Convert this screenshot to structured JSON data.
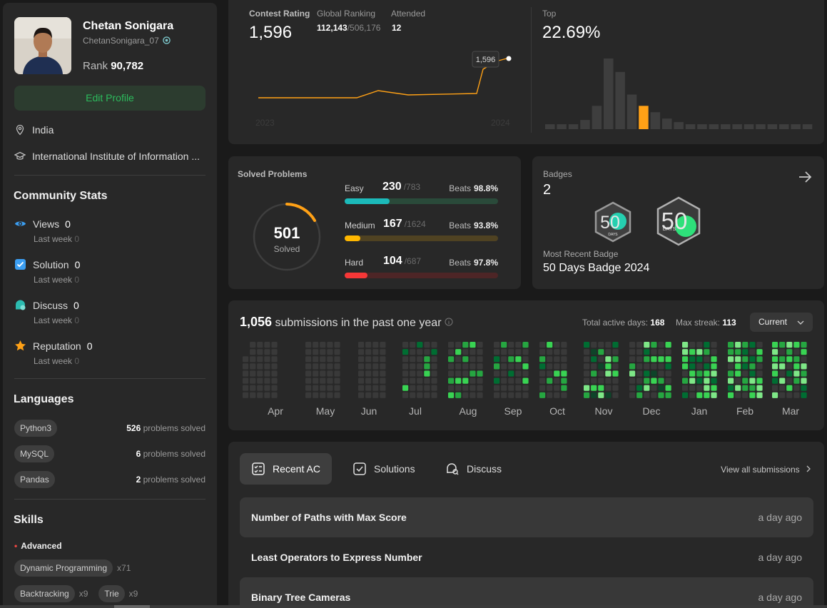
{
  "profile": {
    "name": "Chetan Sonigara",
    "username": "ChetanSonigara_07",
    "rank_label": "Rank",
    "rank_value": "90,782",
    "edit_label": "Edit Profile",
    "location": "India",
    "school": "International Institute of Information ..."
  },
  "community": {
    "title": "Community Stats",
    "last_week_label": "Last week",
    "items": [
      {
        "label": "Views",
        "value": "0",
        "last_week": "0",
        "icon": "eye-icon",
        "color": "#3b9ef2"
      },
      {
        "label": "Solution",
        "value": "0",
        "last_week": "0",
        "icon": "check-square-icon",
        "color": "#3b9ef2"
      },
      {
        "label": "Discuss",
        "value": "0",
        "last_week": "0",
        "icon": "chat-icon",
        "color": "#2cbbb0"
      },
      {
        "label": "Reputation",
        "value": "0",
        "last_week": "0",
        "icon": "star-icon",
        "color": "#ffa116"
      }
    ]
  },
  "languages": {
    "title": "Languages",
    "suffix": "problems solved",
    "items": [
      {
        "name": "Python3",
        "count": "526"
      },
      {
        "name": "MySQL",
        "count": "6"
      },
      {
        "name": "Pandas",
        "count": "2"
      }
    ]
  },
  "skills": {
    "title": "Skills",
    "level": "Advanced",
    "items": [
      {
        "name": "Dynamic Programming",
        "count": "x71"
      },
      {
        "name": "Backtracking",
        "count": "x9"
      },
      {
        "name": "Trie",
        "count": "x9"
      }
    ]
  },
  "contest": {
    "rating_label": "Contest Rating",
    "rating": "1,596",
    "global_label": "Global Ranking",
    "global_rank": "112,143",
    "global_total": "/506,176",
    "attended_label": "Attended",
    "attended": "12",
    "top_label": "Top",
    "top_value": "22.69%",
    "tooltip": "1,596",
    "year_start": "2023",
    "year_end": "2024",
    "line_color": "#ffa116"
  },
  "solved": {
    "title": "Solved Problems",
    "total": "501",
    "total_label": "Solved",
    "beats_label": "Beats",
    "difficulties": [
      {
        "name": "Easy",
        "solved": "230",
        "total": "/783",
        "beats": "98.8%",
        "fill": 0.294,
        "color": "#1cbaba",
        "track": "#2a4a3a"
      },
      {
        "name": "Medium",
        "solved": "167",
        "total": "/1624",
        "beats": "93.8%",
        "fill": 0.103,
        "color": "#ffb700",
        "track": "#4f4222"
      },
      {
        "name": "Hard",
        "solved": "104",
        "total": "/687",
        "beats": "97.8%",
        "fill": 0.151,
        "color": "#f63737",
        "track": "#4d2526"
      }
    ]
  },
  "badges": {
    "title": "Badges",
    "count": "2",
    "recent_label": "Most Recent Badge",
    "recent_name": "50 Days Badge 2024",
    "badge_text": "50",
    "badge_sub": "DAYS"
  },
  "activity": {
    "count": "1,056",
    "label": "submissions in the past one year",
    "active_label": "Total active days:",
    "active_days": "168",
    "streak_label": "Max streak:",
    "streak": "113",
    "dropdown": "Current",
    "months": [
      "Apr",
      "May",
      "Jun",
      "Jul",
      "Aug",
      "Sep",
      "Oct",
      "Nov",
      "Dec",
      "Jan",
      "Feb",
      "Mar"
    ]
  },
  "recent": {
    "tabs": [
      {
        "label": "Recent AC",
        "icon": "list-check-icon"
      },
      {
        "label": "Solutions",
        "icon": "checkbox-icon"
      },
      {
        "label": "Discuss",
        "icon": "chat-bubble-icon"
      }
    ],
    "view_all": "View all submissions",
    "problems": [
      {
        "title": "Number of Paths with Max Score",
        "time": "a day ago"
      },
      {
        "title": "Least Operators to Express Number",
        "time": "a day ago"
      },
      {
        "title": "Binary Tree Cameras",
        "time": "a day ago"
      }
    ]
  }
}
